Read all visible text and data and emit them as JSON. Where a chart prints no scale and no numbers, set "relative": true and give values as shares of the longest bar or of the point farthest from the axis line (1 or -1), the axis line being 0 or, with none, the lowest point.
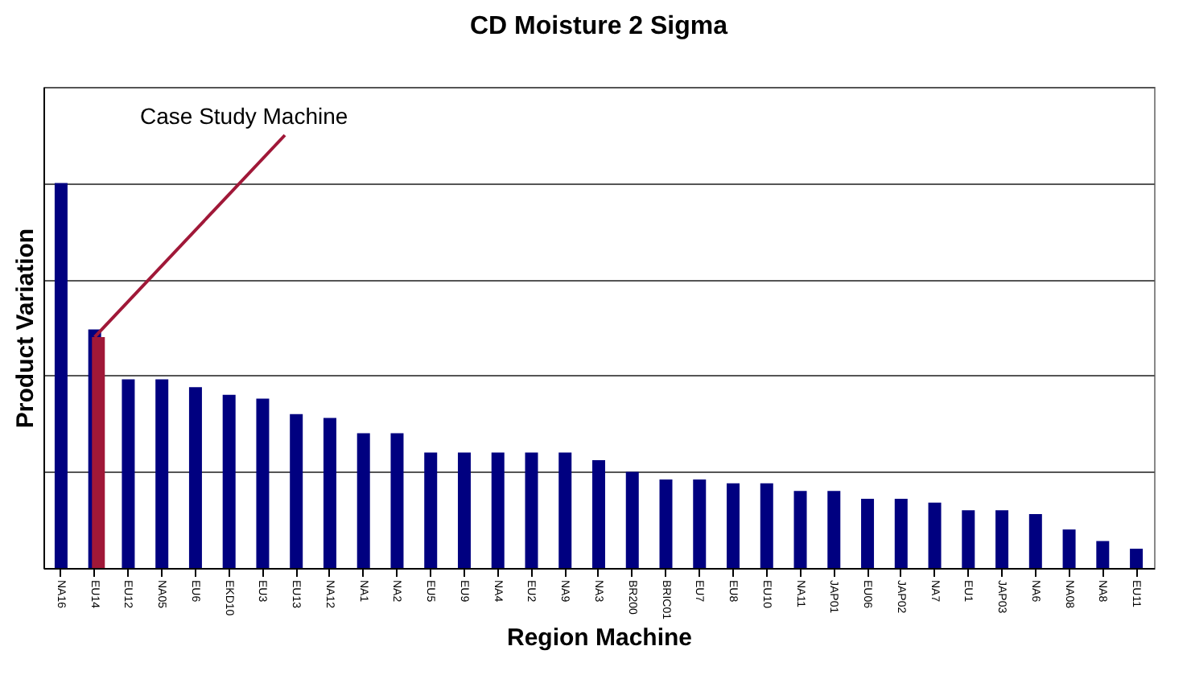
{
  "chart_data": {
    "type": "bar",
    "title": "CD Moisture 2 Sigma",
    "xlabel": "Region Machine",
    "ylabel": "Product Variation",
    "relative": true,
    "grid": "y",
    "categories": [
      "NA16",
      "EU14",
      "EU12",
      "NA05",
      "EU6",
      "EKD10",
      "EU3",
      "EU13",
      "NA12",
      "NA1",
      "NA2",
      "EU5",
      "EU9",
      "NA4",
      "EU2",
      "NA9",
      "NA3",
      "BR200",
      "BRIC01",
      "EU7",
      "EU8",
      "EU10",
      "NA11",
      "JAP01",
      "EU06",
      "JAP02",
      "NA7",
      "EU1",
      "JAP03",
      "NA6",
      "NA08",
      "NA8",
      "EU11"
    ],
    "series": [
      {
        "color": "#000080",
        "values": [
          1.0,
          0.62,
          0.49,
          0.49,
          0.47,
          0.45,
          0.44,
          0.4,
          0.39,
          0.35,
          0.35,
          0.3,
          0.3,
          0.3,
          0.3,
          0.3,
          0.28,
          0.25,
          0.23,
          0.23,
          0.22,
          0.22,
          0.2,
          0.2,
          0.18,
          0.18,
          0.17,
          0.15,
          0.15,
          0.14,
          0.1,
          0.07,
          0.05
        ]
      },
      {
        "color": "#a01838",
        "values": [
          null,
          0.6,
          null,
          null,
          null,
          null,
          null,
          null,
          null,
          null,
          null,
          null,
          null,
          null,
          null,
          null,
          null,
          null,
          null,
          null,
          null,
          null,
          null,
          null,
          null,
          null,
          null,
          null,
          null,
          null,
          null,
          null,
          null
        ]
      }
    ],
    "annotations": [
      {
        "text": "Case Study Machine",
        "x": "EU14",
        "y": 0.6
      }
    ]
  }
}
